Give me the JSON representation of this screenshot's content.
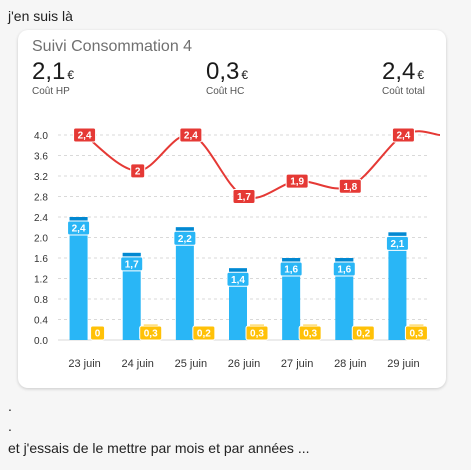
{
  "post": {
    "intro": "j'en suis là",
    "dot1": ".",
    "dot2": ".",
    "outro": "et j'essais de le mettre par mois et par années ..."
  },
  "card": {
    "title": "Suivi Consommation 4",
    "stats": [
      {
        "value": "2,1",
        "unit": "€",
        "label": "Coût HP"
      },
      {
        "value": "0,3",
        "unit": "€",
        "label": "Coût HC"
      },
      {
        "value": "2,4",
        "unit": "€",
        "label": "Coût total"
      }
    ]
  },
  "colors": {
    "bar_hp": "#29b6f6",
    "bar_hp_dark": "#0288d1",
    "bar_hc": "#ffc107",
    "line_total": "#e53935",
    "grid": "#d9d9d9"
  },
  "chart_data": {
    "type": "bar",
    "categories": [
      "23 juin",
      "24 juin",
      "25 juin",
      "26 juin",
      "27 juin",
      "28 juin",
      "29 juin"
    ],
    "yticks": [
      "4.0",
      "3.6",
      "3.2",
      "2.8",
      "2.4",
      "2.0",
      "1.6",
      "1.2",
      "0.8",
      "0.4",
      "0.0"
    ],
    "ylim": [
      0,
      4.0
    ],
    "series": [
      {
        "type": "bar",
        "values": [
          2.4,
          1.7,
          2.2,
          1.4,
          1.6,
          1.6,
          2.1
        ],
        "labels": [
          "2,4",
          "1,7",
          "2,2",
          "1,4",
          "1,6",
          "1,6",
          "2,1"
        ]
      },
      {
        "type": "bar",
        "values": [
          0,
          0.3,
          0.2,
          0.3,
          0.3,
          0.2,
          0.3
        ],
        "labels": [
          "0",
          "0,3",
          "0,2",
          "0,3",
          "0,3",
          "0,2",
          "0,3"
        ]
      },
      {
        "type": "line",
        "values": [
          4.0,
          3.3,
          4.0,
          2.8,
          3.1,
          3.0,
          4.0
        ],
        "labels": [
          "2,4",
          "2",
          "2,4",
          "1,7",
          "1,9",
          "1,8",
          "2,4"
        ]
      }
    ],
    "grid": true
  }
}
